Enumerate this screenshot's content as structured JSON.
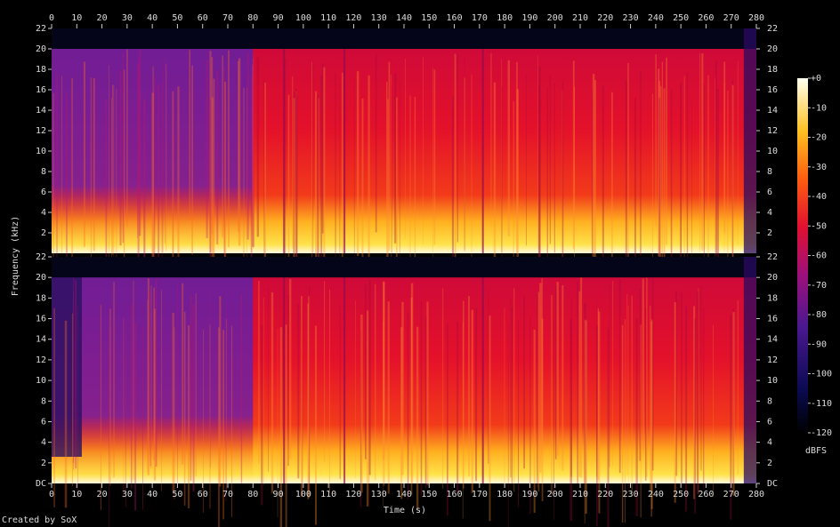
{
  "chart_data": {
    "type": "spectrogram",
    "x_label": "Time (s)",
    "y_label": "Frequency (kHz)",
    "xlim": [
      0,
      280
    ],
    "xticks": [
      0,
      10,
      20,
      30,
      40,
      50,
      60,
      70,
      80,
      90,
      100,
      110,
      120,
      130,
      140,
      150,
      160,
      170,
      180,
      190,
      200,
      210,
      220,
      230,
      240,
      250,
      260,
      270,
      280
    ],
    "panels": [
      {
        "ylim": [
          0,
          22
        ],
        "yticks": [
          2,
          4,
          6,
          8,
          10,
          12,
          14,
          16,
          18,
          20,
          22
        ]
      },
      {
        "ylim": [
          0,
          22
        ],
        "yticks": [
          {
            "value": 0,
            "label": "DC"
          },
          2,
          4,
          6,
          8,
          10,
          12,
          14,
          16,
          18,
          20,
          22
        ]
      }
    ],
    "colorbar": {
      "label": "dBFS",
      "lim": [
        -120,
        0
      ],
      "ticks": [
        {
          "value": 0,
          "label": "+0"
        },
        -10,
        -20,
        -30,
        -40,
        -50,
        -60,
        -70,
        -80,
        -90,
        -100,
        -110,
        -120
      ]
    },
    "footer": "Created by SoX"
  }
}
